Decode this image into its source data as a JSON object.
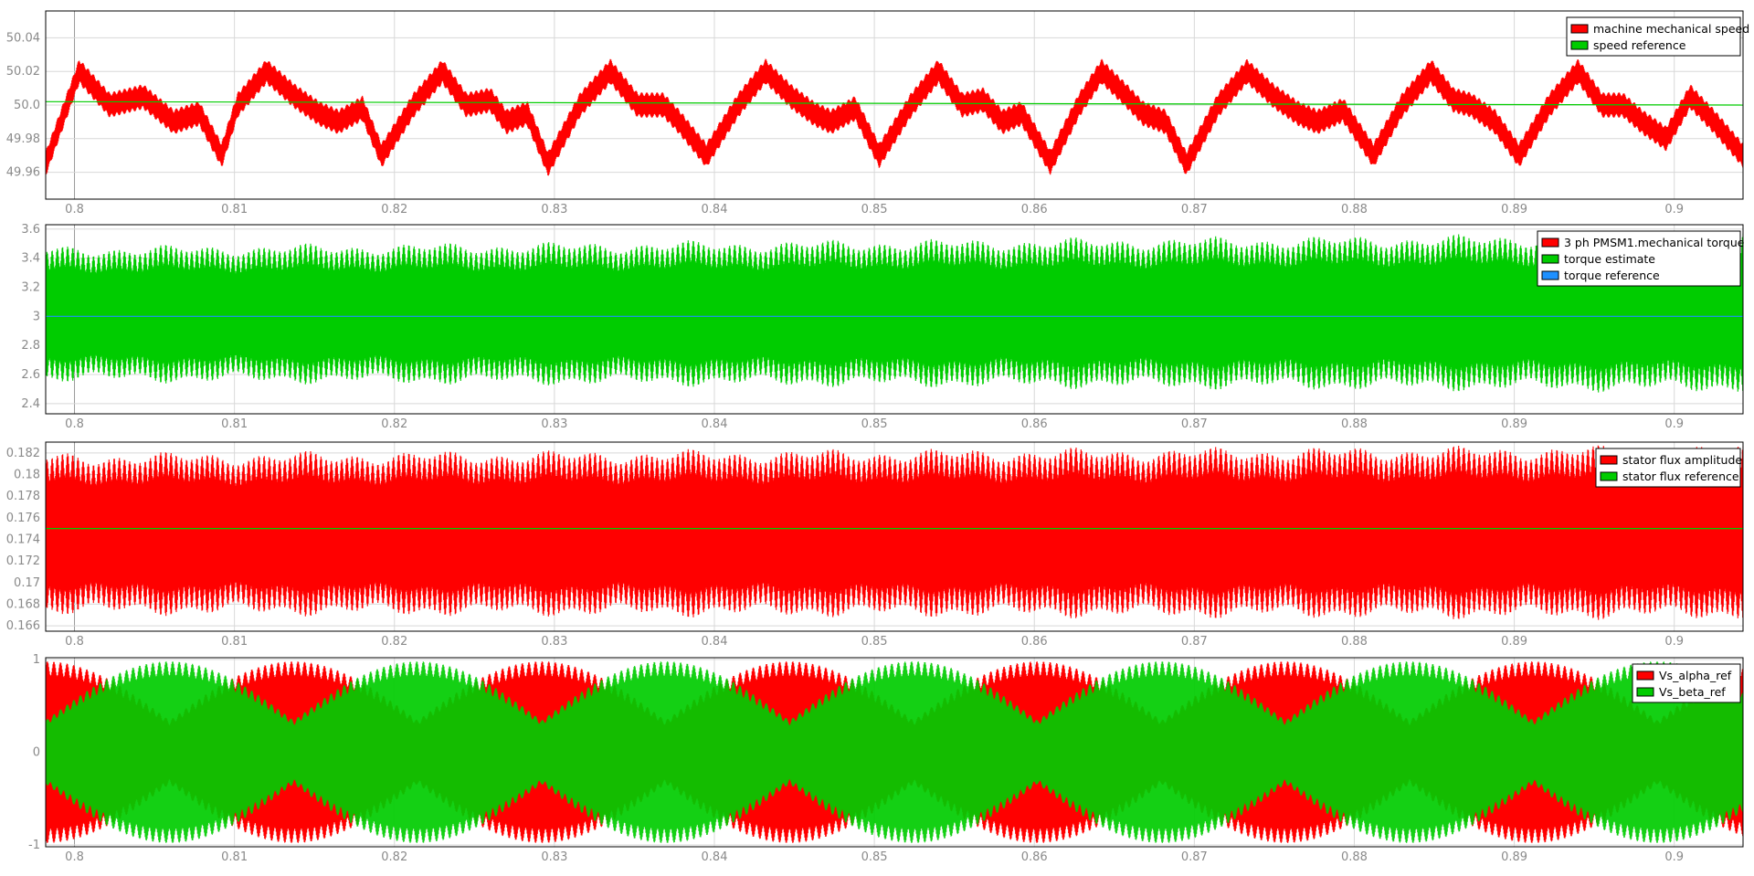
{
  "chart_data": [
    {
      "type": "line",
      "title": "",
      "xlabel": "",
      "ylabel": "",
      "xlim": [
        0.7982,
        0.9043
      ],
      "ylim": [
        49.944,
        50.056
      ],
      "xticks": [
        0.8,
        0.81,
        0.82,
        0.83,
        0.84,
        0.85,
        0.86,
        0.87,
        0.88,
        0.89,
        0.9
      ],
      "xtick_labels": [
        "0.8",
        "0.81",
        "0.82",
        "0.83",
        "0.84",
        "0.85",
        "0.86",
        "0.87",
        "0.88",
        "0.89",
        "0.9"
      ],
      "yticks": [
        49.96,
        49.98,
        50.0,
        50.02,
        50.04
      ],
      "ytick_labels": [
        "49.96",
        "49.98",
        "50.0",
        "50.02",
        "50.04"
      ],
      "grid": true,
      "legend": "top-right",
      "series": [
        {
          "name": "machine mechanical speed",
          "color": "#ff0000",
          "style": "ripple-band",
          "x": [
            0.7982,
            0.8003,
            0.8022,
            0.8043,
            0.8062,
            0.8078,
            0.8092,
            0.8102,
            0.812,
            0.8138,
            0.8153,
            0.8165,
            0.818,
            0.8192,
            0.8212,
            0.823,
            0.8245,
            0.826,
            0.827,
            0.8283,
            0.8296,
            0.8316,
            0.8335,
            0.8352,
            0.8368,
            0.8378,
            0.8395,
            0.8415,
            0.8432,
            0.8448,
            0.8462,
            0.8473,
            0.8488,
            0.8503,
            0.8523,
            0.854,
            0.8555,
            0.8568,
            0.858,
            0.8592,
            0.861,
            0.8628,
            0.8642,
            0.8658,
            0.8668,
            0.8682,
            0.8695,
            0.8715,
            0.8733,
            0.875,
            0.8765,
            0.8777,
            0.8793,
            0.8812,
            0.883,
            0.8848,
            0.8862,
            0.8873,
            0.8888,
            0.8903,
            0.8922,
            0.894,
            0.8955,
            0.8968,
            0.898,
            0.8995,
            0.901,
            0.9025,
            0.9043
          ],
          "y": [
            49.965,
            50.02,
            50.0,
            50.005,
            49.99,
            49.995,
            49.97,
            50.0,
            50.02,
            50.005,
            49.995,
            49.99,
            49.998,
            49.97,
            50.0,
            50.02,
            50.0,
            50.003,
            49.99,
            49.995,
            49.965,
            50.0,
            50.02,
            50.0,
            50.0,
            49.99,
            49.97,
            50.0,
            50.02,
            50.005,
            49.995,
            49.99,
            49.998,
            49.97,
            50.0,
            50.02,
            50.0,
            50.003,
            49.99,
            49.995,
            49.966,
            50.0,
            50.02,
            50.005,
            49.995,
            49.99,
            49.965,
            50.0,
            50.02,
            50.005,
            49.995,
            49.99,
            49.997,
            49.97,
            50.0,
            50.02,
            50.003,
            50.0,
            49.99,
            49.97,
            50.0,
            50.02,
            50.0,
            50.0,
            49.99,
            49.98,
            50.005,
            49.99,
            49.97
          ],
          "ripple_amplitude": 0.0075
        },
        {
          "name": "speed reference",
          "color": "#00cc00",
          "style": "line",
          "x": [
            0.7982,
            0.9043
          ],
          "y": [
            50.002,
            50.0
          ]
        }
      ]
    },
    {
      "type": "line",
      "title": "",
      "xlabel": "",
      "ylabel": "",
      "xlim": [
        0.7982,
        0.9043
      ],
      "ylim": [
        2.33,
        3.63
      ],
      "xticks": [
        0.8,
        0.81,
        0.82,
        0.83,
        0.84,
        0.85,
        0.86,
        0.87,
        0.88,
        0.89,
        0.9
      ],
      "xtick_labels": [
        "0.8",
        "0.81",
        "0.82",
        "0.83",
        "0.84",
        "0.85",
        "0.86",
        "0.87",
        "0.88",
        "0.89",
        "0.9"
      ],
      "yticks": [
        2.4,
        2.6,
        2.8,
        3.0,
        3.2,
        3.4,
        3.6
      ],
      "ytick_labels": [
        "2.4",
        "2.6",
        "2.8",
        "3",
        "3.2",
        "3.4",
        "3.6"
      ],
      "grid": true,
      "legend": "top-right",
      "series": [
        {
          "name": "3 ph PMSM1.mechanical torque",
          "color": "#ff0000",
          "style": "hidden-under-estimate"
        },
        {
          "name": "torque estimate",
          "color": "#00cc00",
          "style": "ripple-band",
          "x": [
            0.7982,
            0.9043
          ],
          "y": [
            3.01,
            3.01
          ],
          "envelope_upper": [
            3.47,
            3.56
          ],
          "envelope_lower": [
            2.56,
            2.49
          ],
          "ripple_amplitude": 0.48
        },
        {
          "name": "torque reference",
          "color": "#1e90ff",
          "style": "line",
          "x": [
            0.7982,
            0.9043
          ],
          "y": [
            3.0,
            3.0
          ]
        }
      ]
    },
    {
      "type": "line",
      "title": "",
      "xlabel": "",
      "ylabel": "",
      "xlim": [
        0.7982,
        0.9043
      ],
      "ylim": [
        0.1655,
        0.183
      ],
      "xticks": [
        0.8,
        0.81,
        0.82,
        0.83,
        0.84,
        0.85,
        0.86,
        0.87,
        0.88,
        0.89,
        0.9
      ],
      "xtick_labels": [
        "0.8",
        "0.81",
        "0.82",
        "0.83",
        "0.84",
        "0.85",
        "0.86",
        "0.87",
        "0.88",
        "0.89",
        "0.9"
      ],
      "yticks": [
        0.166,
        0.168,
        0.17,
        0.172,
        0.174,
        0.176,
        0.178,
        0.18,
        0.182
      ],
      "ytick_labels": [
        "0.166",
        "0.168",
        "0.17",
        "0.172",
        "0.174",
        "0.176",
        "0.178",
        "0.18",
        "0.182"
      ],
      "grid": true,
      "legend": "top-right",
      "series": [
        {
          "name": "stator flux amplitude",
          "color": "#ff0000",
          "style": "ripple-band",
          "x": [
            0.7982,
            0.9043
          ],
          "y": [
            0.1745,
            0.1745
          ],
          "envelope_upper": [
            0.1818,
            0.1825
          ],
          "envelope_lower": [
            0.1672,
            0.1668
          ],
          "ripple_amplitude": 0.0075
        },
        {
          "name": "stator flux reference",
          "color": "#00cc00",
          "style": "line",
          "x": [
            0.7982,
            0.9043
          ],
          "y": [
            0.175,
            0.175
          ]
        }
      ]
    },
    {
      "type": "line",
      "title": "",
      "xlabel": "",
      "ylabel": "",
      "xlim": [
        0.7982,
        0.9043
      ],
      "ylim": [
        -1.02,
        1.02
      ],
      "xticks": [
        0.8,
        0.81,
        0.82,
        0.83,
        0.84,
        0.85,
        0.86,
        0.87,
        0.88,
        0.89,
        0.9
      ],
      "xtick_labels": [
        "0.8",
        "0.81",
        "0.82",
        "0.83",
        "0.84",
        "0.85",
        "0.86",
        "0.87",
        "0.88",
        "0.89",
        "0.9"
      ],
      "yticks": [
        -1,
        0,
        1
      ],
      "ytick_labels": [
        "-1",
        "0",
        "1"
      ],
      "grid": true,
      "legend": "top-right",
      "series": [
        {
          "name": "Vs_alpha_ref",
          "color": "#ff0000",
          "style": "modulated-carrier",
          "amplitude": 0.98,
          "envelope_period": 0.031,
          "envelope_phase": 0.0
        },
        {
          "name": "Vs_beta_ref",
          "color": "#00cc00",
          "style": "modulated-carrier",
          "amplitude": 0.98,
          "envelope_period": 0.031,
          "envelope_phase": 0.25
        }
      ]
    }
  ],
  "legend_style": {
    "background": "#ffffff",
    "border": "#000000"
  }
}
